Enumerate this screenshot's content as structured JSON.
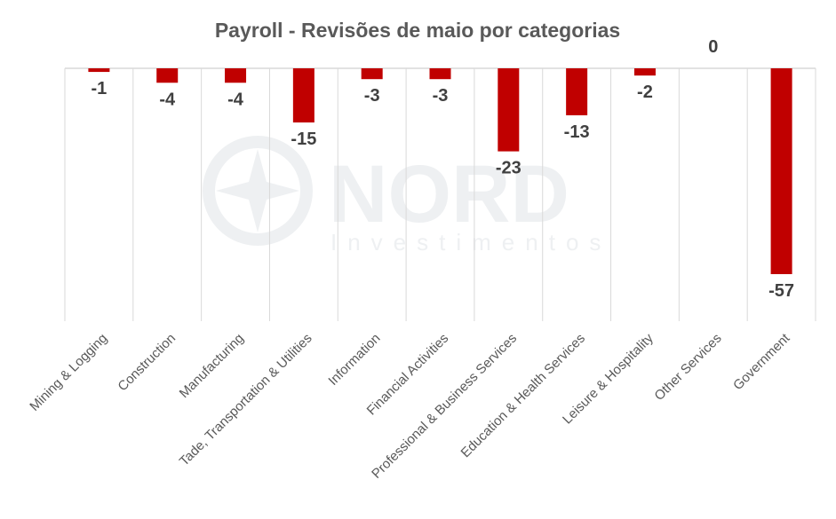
{
  "watermark": {
    "brand": "NORD",
    "sub": "Investimentos"
  },
  "chart_data": {
    "type": "bar",
    "title": "Payroll  - Revisões de maio por categorias",
    "categories": [
      "Mining & Logging",
      "Construction",
      "Manufacturing",
      "Tade, Transportation & Utilities",
      "Information",
      "Financial Activities",
      "Professional & Business Services",
      "Education & Health Services",
      "Leisure & Hospitality",
      "Other Services",
      "Government"
    ],
    "values": [
      -1,
      -4,
      -4,
      -15,
      -3,
      -3,
      -23,
      -13,
      -2,
      0,
      -57
    ],
    "data_labels": [
      "-1",
      "-4",
      "-4",
      "-15",
      "-3",
      "-3",
      "-23",
      "-13",
      "-2",
      "0",
      "-57"
    ],
    "ylim": [
      -70,
      0
    ],
    "grid": "vertical category separators",
    "legend": "none",
    "bar_color": "#c00000"
  }
}
